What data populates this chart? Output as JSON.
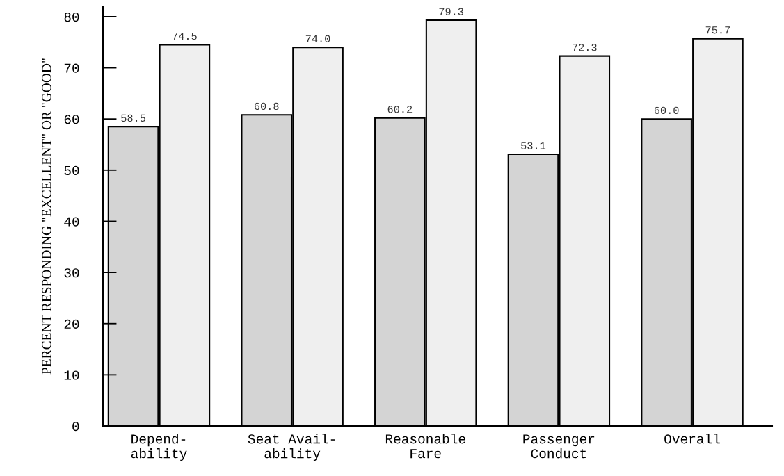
{
  "chart_data": {
    "type": "bar",
    "ylabel": "PERCENT RESPONDING \"EXCELLENT\" OR \"GOOD\"",
    "categories": [
      "Depend-\nability",
      "Seat Avail-\nability",
      "Reasonable\nFare",
      "Passenger\nConduct",
      "Overall"
    ],
    "series": [
      {
        "color": "#d4d4d4",
        "values": [
          58.5,
          60.8,
          60.2,
          53.1,
          60.0
        ],
        "value_labels": [
          "58.5",
          "60.8",
          "60.2",
          "53.1",
          "60.0"
        ]
      },
      {
        "color": "#efefef",
        "values": [
          74.5,
          74.0,
          79.3,
          72.3,
          75.7
        ],
        "value_labels": [
          "74.5",
          "74.0",
          "79.3",
          "72.3",
          "75.7"
        ]
      }
    ],
    "ylim": [
      0,
      82
    ],
    "yticks": [
      0,
      10,
      20,
      30,
      40,
      50,
      60,
      70,
      80
    ],
    "grid": false,
    "legend": false
  }
}
